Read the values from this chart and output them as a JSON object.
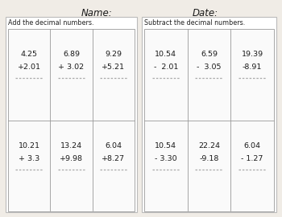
{
  "title_name": "Name:",
  "title_date": "Date:",
  "add_header": "Add the decimal numbers.",
  "sub_header": "Subtract the decimal numbers.",
  "add_problems": [
    [
      "4.25",
      "+2.01"
    ],
    [
      "6.89",
      "+ 3.02"
    ],
    [
      "9.29",
      "+5.21"
    ],
    [
      "10.21",
      "+ 3.3"
    ],
    [
      "13.24",
      "+9.98"
    ],
    [
      "6.04",
      "+8.27"
    ]
  ],
  "sub_problems": [
    [
      "10.54",
      "-  2.01"
    ],
    [
      "6.59",
      "-  3.05"
    ],
    [
      "19.39",
      "-8.91"
    ],
    [
      "10.54",
      "- 3.30"
    ],
    [
      "22.24",
      "-9.18"
    ],
    [
      "6.04",
      "- 1.27"
    ]
  ],
  "bg_color": "#f0ece6",
  "box_color": "#ffffff",
  "inner_box_color": "#fafafa",
  "grid_line_color": "#999999",
  "outer_border_color": "#bbbbbb",
  "text_color": "#1a1a1a",
  "header_color": "#222222",
  "dash_color": "#aaaaaa",
  "title_fontsize": 8.5,
  "header_fontsize": 5.8,
  "problem_fontsize": 6.8,
  "dash_fontsize": 5.0
}
